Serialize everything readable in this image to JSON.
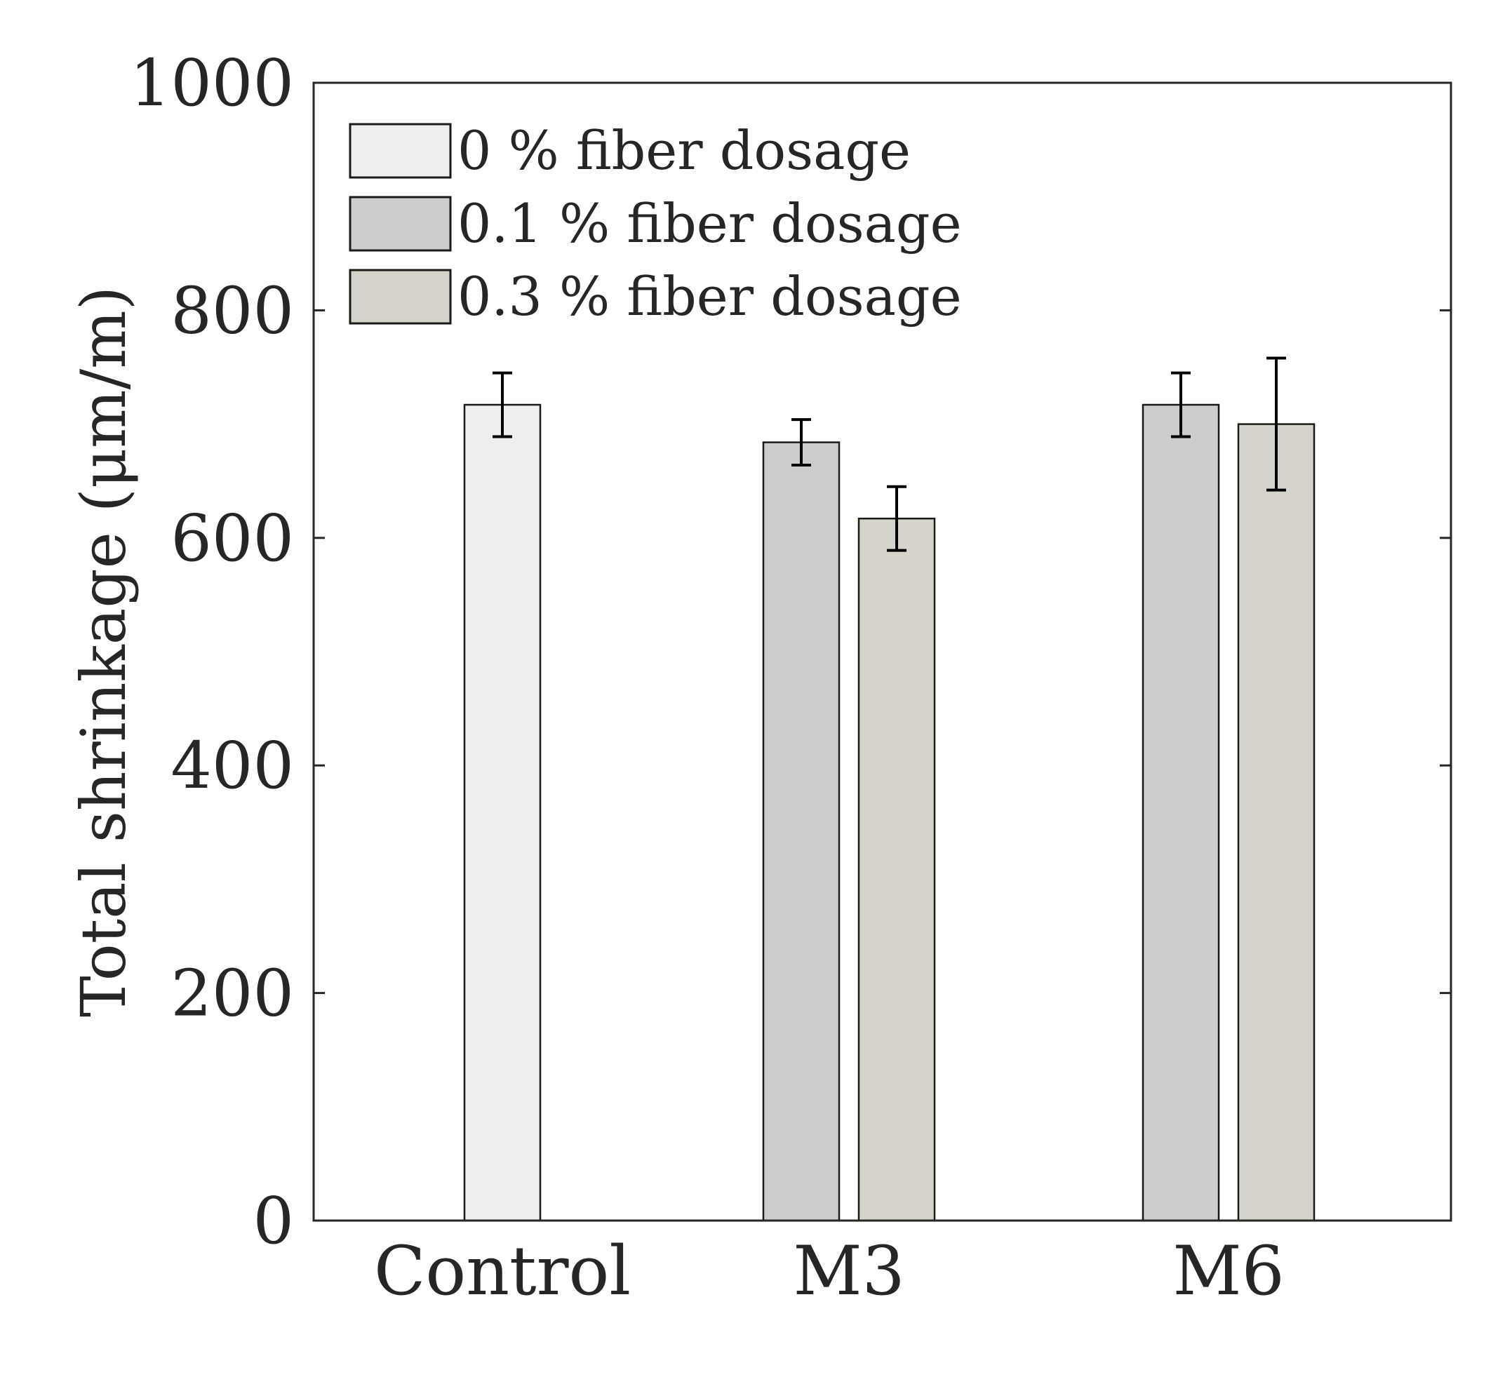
{
  "chart_data": {
    "type": "bar",
    "title": "",
    "xlabel": "",
    "ylabel": "Total shrinkage (μm/m)",
    "ylim": [
      0,
      1000
    ],
    "yticks": [
      0,
      200,
      400,
      600,
      800,
      1000
    ],
    "categories": [
      "Control",
      "M3",
      "M6"
    ],
    "legend_position": "top-left",
    "grid": false,
    "series": [
      {
        "name": "0 % fiber dosage",
        "color": "#efefef",
        "values": [
          717,
          null,
          null
        ],
        "errors": [
          28,
          null,
          null
        ]
      },
      {
        "name": "0.1 % fiber dosage",
        "color": "#cdcdcd",
        "values": [
          null,
          684,
          717
        ],
        "errors": [
          null,
          20,
          28
        ]
      },
      {
        "name": "0.3 % fiber dosage",
        "color": "#d6d4ca",
        "values": [
          null,
          617,
          700
        ],
        "errors": [
          null,
          28,
          58
        ]
      }
    ]
  }
}
